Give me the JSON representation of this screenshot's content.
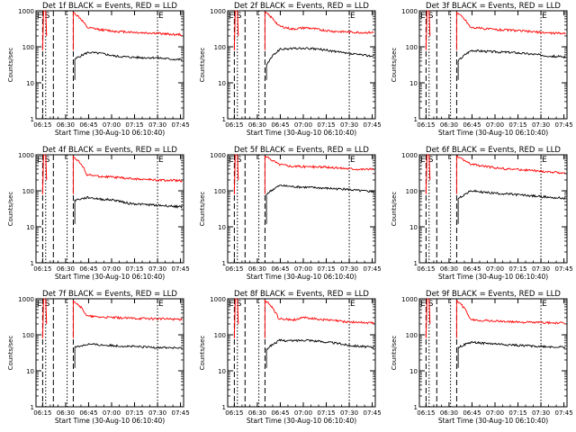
{
  "figure": {
    "date_label": "30-Aug-10"
  },
  "chart_data": [
    {
      "type": "line",
      "title": "Det 1f BLACK = Events, RED = LLD",
      "xlabel": "Start Time (30-Aug-10 06:10:40)",
      "ylabel": "Counts/sec",
      "yscale": "log",
      "ylim": [
        1,
        1000
      ],
      "xlim": [
        "06:10:40",
        "07:47:00"
      ],
      "xticks": [
        "06:15",
        "06:30",
        "06:45",
        "07:00",
        "07:15",
        "07:30",
        "07:45"
      ],
      "yticks": [
        "1",
        "10",
        "100",
        "1000"
      ],
      "markers": {
        "E": "07:30",
        "S": "06:17"
      },
      "series": [
        {
          "name": "Events",
          "color": "#000000",
          "start": "06:36",
          "end": "07:46",
          "values": [
            45,
            70,
            65,
            55,
            52,
            50,
            50,
            46,
            44
          ]
        },
        {
          "name": "LLD",
          "color": "#ff0000",
          "start": "06:35",
          "end": "07:46",
          "values": [
            900,
            340,
            300,
            270,
            260,
            245,
            240,
            225,
            215
          ]
        }
      ]
    },
    {
      "type": "line",
      "title": "Det 2f BLACK = Events, RED = LLD",
      "xlabel": "Start Time (30-Aug-10 06:10:40)",
      "ylabel": "Counts/sec",
      "yscale": "log",
      "ylim": [
        1,
        1000
      ],
      "xlim": [
        "06:10:40",
        "07:47:00"
      ],
      "xticks": [
        "06:15",
        "06:30",
        "06:45",
        "07:00",
        "07:15",
        "07:30",
        "07:45"
      ],
      "yticks": [
        "1",
        "10",
        "100",
        "1000"
      ],
      "markers": {
        "E": "07:30",
        "S": "06:17"
      },
      "series": [
        {
          "name": "Events",
          "color": "#000000",
          "start": "06:36",
          "end": "07:46",
          "values": [
            30,
            85,
            90,
            90,
            85,
            75,
            65,
            60,
            55
          ]
        },
        {
          "name": "LLD",
          "color": "#ff0000",
          "start": "06:35",
          "end": "07:46",
          "values": [
            900,
            380,
            310,
            340,
            300,
            270,
            260,
            250,
            250
          ]
        }
      ]
    },
    {
      "type": "line",
      "title": "Det 3f BLACK = Events, RED = LLD",
      "xlabel": "Start Time (30-Aug-10 06:10:40)",
      "ylabel": "Counts/sec",
      "yscale": "log",
      "ylim": [
        1,
        1000
      ],
      "xlim": [
        "06:10:40",
        "07:47:00"
      ],
      "xticks": [
        "06:15",
        "06:30",
        "06:45",
        "07:00",
        "07:15",
        "07:30",
        "07:45"
      ],
      "yticks": [
        "1",
        "10",
        "100",
        "1000"
      ],
      "markers": {
        "E": "07:30",
        "S": "06:17"
      },
      "series": [
        {
          "name": "Events",
          "color": "#000000",
          "start": "06:36",
          "end": "07:46",
          "values": [
            40,
            80,
            75,
            72,
            70,
            65,
            60,
            55,
            52
          ]
        },
        {
          "name": "LLD",
          "color": "#ff0000",
          "start": "06:35",
          "end": "07:46",
          "values": [
            900,
            350,
            320,
            300,
            290,
            270,
            255,
            240,
            235
          ]
        }
      ]
    },
    {
      "type": "line",
      "title": "Det 4f BLACK = Events, RED = LLD",
      "xlabel": "Start Time (30-Aug-10 06:10:40)",
      "ylabel": "Counts/sec",
      "yscale": "log",
      "ylim": [
        1,
        1000
      ],
      "xlim": [
        "06:10:40",
        "07:47:00"
      ],
      "xticks": [
        "06:15",
        "06:30",
        "06:45",
        "07:00",
        "07:15",
        "07:30",
        "07:45"
      ],
      "yticks": [
        "1",
        "10",
        "100",
        "1000"
      ],
      "markers": {
        "E": "07:30",
        "S": "06:17"
      },
      "series": [
        {
          "name": "Events",
          "color": "#000000",
          "start": "06:36",
          "end": "07:46",
          "values": [
            55,
            65,
            58,
            55,
            45,
            42,
            40,
            38,
            36
          ]
        },
        {
          "name": "LLD",
          "color": "#ff0000",
          "start": "06:35",
          "end": "07:46",
          "values": [
            900,
            280,
            250,
            240,
            220,
            210,
            200,
            195,
            190
          ]
        }
      ]
    },
    {
      "type": "line",
      "title": "Det 5f BLACK = Events, RED = LLD",
      "xlabel": "Start Time (30-Aug-10 06:10:40)",
      "ylabel": "Counts/sec",
      "yscale": "log",
      "ylim": [
        1,
        1000
      ],
      "xlim": [
        "06:10:40",
        "07:47:00"
      ],
      "xticks": [
        "06:15",
        "06:30",
        "06:45",
        "07:00",
        "07:15",
        "07:30",
        "07:45"
      ],
      "yticks": [
        "1",
        "10",
        "100",
        "1000"
      ],
      "markers": {
        "E": "07:30",
        "S": "06:17"
      },
      "series": [
        {
          "name": "Events",
          "color": "#000000",
          "start": "06:36",
          "end": "07:46",
          "values": [
            80,
            140,
            130,
            125,
            120,
            115,
            110,
            100,
            95
          ]
        },
        {
          "name": "LLD",
          "color": "#ff0000",
          "start": "06:35",
          "end": "07:46",
          "values": [
            900,
            550,
            480,
            470,
            460,
            440,
            420,
            400,
            400
          ]
        }
      ]
    },
    {
      "type": "line",
      "title": "Det 6f BLACK = Events, RED = LLD",
      "xlabel": "Start Time (30-Aug-10 06:10:40)",
      "ylabel": "Counts/sec",
      "yscale": "log",
      "ylim": [
        1,
        1000
      ],
      "xlim": [
        "06:10:40",
        "07:47:00"
      ],
      "xticks": [
        "06:15",
        "06:30",
        "06:45",
        "07:00",
        "07:15",
        "07:30",
        "07:45"
      ],
      "yticks": [
        "1",
        "10",
        "100",
        "1000"
      ],
      "markers": {
        "E": "07:30",
        "S": "06:17"
      },
      "series": [
        {
          "name": "Events",
          "color": "#000000",
          "start": "06:36",
          "end": "07:46",
          "values": [
            60,
            100,
            90,
            85,
            80,
            75,
            70,
            65,
            62
          ]
        },
        {
          "name": "LLD",
          "color": "#ff0000",
          "start": "06:35",
          "end": "07:46",
          "values": [
            900,
            550,
            480,
            430,
            400,
            380,
            350,
            330,
            310
          ]
        }
      ]
    },
    {
      "type": "line",
      "title": "Det 7f BLACK = Events, RED = LLD",
      "xlabel": "Start Time (30-Aug-10 06:10:40)",
      "ylabel": "Counts/sec",
      "yscale": "log",
      "ylim": [
        1,
        1000
      ],
      "xlim": [
        "06:10:40",
        "07:47:00"
      ],
      "xticks": [
        "06:15",
        "06:30",
        "06:45",
        "07:00",
        "07:15",
        "07:30",
        "07:45"
      ],
      "yticks": [
        "1",
        "10",
        "100",
        "1000"
      ],
      "markers": {
        "E": "07:30",
        "S": "06:17"
      },
      "series": [
        {
          "name": "Events",
          "color": "#000000",
          "start": "06:36",
          "end": "07:46",
          "values": [
            45,
            55,
            52,
            50,
            48,
            46,
            45,
            44,
            42
          ]
        },
        {
          "name": "LLD",
          "color": "#ff0000",
          "start": "06:35",
          "end": "07:46",
          "values": [
            900,
            330,
            310,
            300,
            290,
            285,
            280,
            275,
            270
          ]
        }
      ]
    },
    {
      "type": "line",
      "title": "Det 8f BLACK = Events, RED = LLD",
      "xlabel": "Start Time (30-Aug-10 06:10:40)",
      "ylabel": "Counts/sec",
      "yscale": "log",
      "ylim": [
        1,
        1000
      ],
      "xlim": [
        "06:10:40",
        "07:47:00"
      ],
      "xticks": [
        "06:15",
        "06:30",
        "06:45",
        "07:00",
        "07:15",
        "07:30",
        "07:45"
      ],
      "yticks": [
        "1",
        "10",
        "100",
        "1000"
      ],
      "markers": {
        "E": "07:30",
        "S": "06:17"
      },
      "series": [
        {
          "name": "Events",
          "color": "#000000",
          "start": "06:36",
          "end": "07:46",
          "values": [
            40,
            70,
            68,
            72,
            65,
            60,
            52,
            48,
            45
          ]
        },
        {
          "name": "LLD",
          "color": "#ff0000",
          "start": "06:35",
          "end": "07:46",
          "values": [
            900,
            280,
            260,
            300,
            270,
            250,
            230,
            220,
            215
          ]
        }
      ]
    },
    {
      "type": "line",
      "title": "Det 9f BLACK = Events, RED = LLD",
      "xlabel": "Start Time (30-Aug-10 06:10:40)",
      "ylabel": "Counts/sec",
      "yscale": "log",
      "ylim": [
        1,
        1000
      ],
      "xlim": [
        "06:10:40",
        "07:47:00"
      ],
      "xticks": [
        "06:15",
        "06:30",
        "06:45",
        "07:00",
        "07:15",
        "07:30",
        "07:45"
      ],
      "yticks": [
        "1",
        "10",
        "100",
        "1000"
      ],
      "markers": {
        "E": "07:30",
        "S": "06:17"
      },
      "series": [
        {
          "name": "Events",
          "color": "#000000",
          "start": "06:36",
          "end": "07:46",
          "values": [
            45,
            62,
            58,
            55,
            52,
            50,
            48,
            46,
            45
          ]
        },
        {
          "name": "LLD",
          "color": "#ff0000",
          "start": "06:35",
          "end": "07:46",
          "values": [
            900,
            260,
            250,
            240,
            230,
            225,
            220,
            215,
            210
          ]
        }
      ]
    }
  ]
}
